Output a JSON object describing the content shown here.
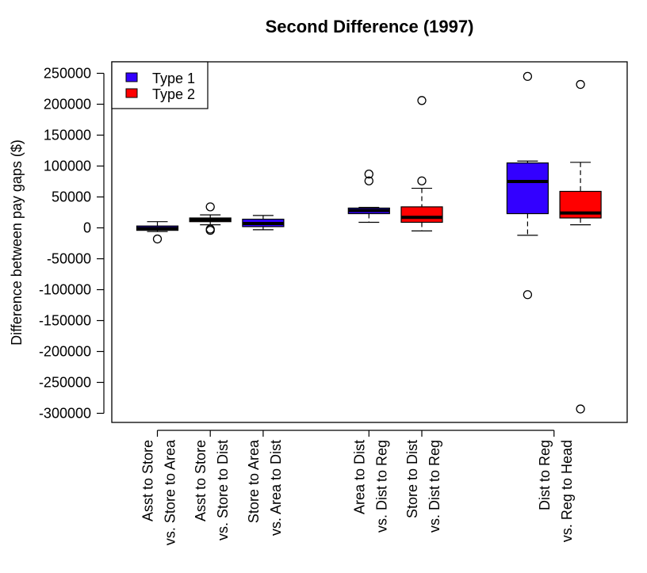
{
  "chart_data": {
    "type": "box",
    "title": "Second Difference (1997)",
    "ylabel": "Difference between pay gaps ($)",
    "xlabel": "",
    "ylim": [
      -300000,
      250000
    ],
    "yticks": [
      250000,
      200000,
      150000,
      100000,
      50000,
      0,
      -50000,
      -100000,
      -150000,
      -200000,
      -250000,
      -300000
    ],
    "legend": {
      "position": "top-left",
      "entries": [
        {
          "name": "Type 1",
          "color": "#3300ff"
        },
        {
          "name": "Type 2",
          "color": "#ff0000"
        }
      ]
    },
    "categories": [
      {
        "lines": [
          "Asst to Store",
          "vs. Store to Area"
        ]
      },
      {
        "lines": [
          "Asst to Store",
          "vs. Store to Dist"
        ]
      },
      {
        "lines": [
          "Store to Area",
          "vs. Area to Dist"
        ]
      },
      {
        "lines": [
          "Area to Dist",
          "vs. Dist to Reg"
        ]
      },
      {
        "lines": [
          "Store to Dist",
          "vs. Dist to Reg"
        ]
      },
      {
        "lines": [
          "Dist to Reg",
          "vs. Reg to Head"
        ]
      }
    ],
    "boxes": [
      {
        "group": 1,
        "type": "Type 1",
        "pos": 1,
        "whisker_low": -6000,
        "q1": -4000,
        "median": -1000,
        "q3": 3000,
        "whisker_high": 10000,
        "outliers": [
          -18000
        ]
      },
      {
        "group": 1,
        "type": "Type 2",
        "pos": 2,
        "whisker_low": 5000,
        "q1": 10000,
        "median": 13000,
        "q3": 16000,
        "whisker_high": 21000,
        "outliers": [
          34000,
          -2000,
          -4000
        ]
      },
      {
        "group": 1,
        "type": "Type 1",
        "pos": 3,
        "whisker_low": -3000,
        "q1": 2000,
        "median": 7000,
        "q3": 14000,
        "whisker_high": 20000,
        "outliers": []
      },
      {
        "group": 2,
        "type": "Type 1",
        "pos": 5,
        "whisker_low": 9000,
        "q1": 23000,
        "median": 28000,
        "q3": 32000,
        "whisker_high": 33000,
        "outliers": [
          87000,
          76000
        ]
      },
      {
        "group": 2,
        "type": "Type 2",
        "pos": 6,
        "whisker_low": -5000,
        "q1": 9000,
        "median": 17000,
        "q3": 34000,
        "whisker_high": 64000,
        "outliers": [
          206000,
          76000
        ]
      },
      {
        "group": 3,
        "type": "Type 1",
        "pos": 8,
        "whisker_low": -12000,
        "q1": 23000,
        "median": 75000,
        "q3": 105000,
        "whisker_high": 108000,
        "outliers": [
          245000,
          -108000
        ]
      },
      {
        "group": 3,
        "type": "Type 2",
        "pos": 9,
        "whisker_low": 5000,
        "q1": 16000,
        "median": 24000,
        "q3": 59000,
        "whisker_high": 106000,
        "outliers": [
          232000,
          -293000
        ]
      }
    ],
    "label_positions": [
      1,
      2,
      3,
      5,
      6,
      8.5
    ]
  }
}
